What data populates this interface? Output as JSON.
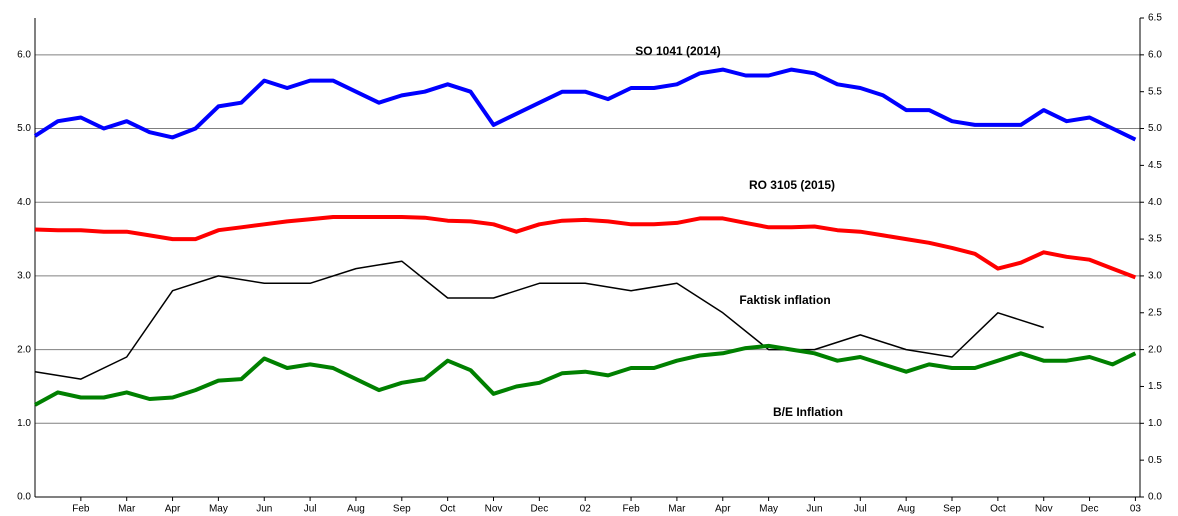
{
  "chart_data": {
    "type": "line",
    "annotations": [
      "SO 1041 (2014)",
      "RO 3105 (2015)",
      "Faktisk inflation",
      "B/E Inflation"
    ],
    "x": [
      0,
      0.5,
      1,
      1.5,
      2,
      2.5,
      3,
      3.5,
      4,
      4.5,
      5,
      5.5,
      6,
      6.5,
      7,
      7.5,
      8,
      8.5,
      9,
      9.5,
      10,
      10.5,
      11,
      11.5,
      12,
      12.5,
      13,
      13.5,
      14,
      14.5,
      15,
      15.5,
      16,
      16.5,
      17,
      17.5,
      18,
      18.5,
      19,
      19.5,
      20,
      20.5,
      21,
      21.5,
      22,
      22.5,
      23,
      23.5,
      24
    ],
    "xlim": [
      0,
      24.1
    ],
    "xticks": [
      {
        "value": 1,
        "label": "Feb"
      },
      {
        "value": 2,
        "label": "Mar"
      },
      {
        "value": 3,
        "label": "Apr"
      },
      {
        "value": 4,
        "label": "May"
      },
      {
        "value": 5,
        "label": "Jun"
      },
      {
        "value": 6,
        "label": "Jul"
      },
      {
        "value": 7,
        "label": "Aug"
      },
      {
        "value": 8,
        "label": "Sep"
      },
      {
        "value": 9,
        "label": "Oct"
      },
      {
        "value": 10,
        "label": "Nov"
      },
      {
        "value": 11,
        "label": "Dec"
      },
      {
        "value": 12,
        "label": "02"
      },
      {
        "value": 13,
        "label": "Feb"
      },
      {
        "value": 14,
        "label": "Mar"
      },
      {
        "value": 15,
        "label": "Apr"
      },
      {
        "value": 16,
        "label": "May"
      },
      {
        "value": 17,
        "label": "Jun"
      },
      {
        "value": 18,
        "label": "Jul"
      },
      {
        "value": 19,
        "label": "Aug"
      },
      {
        "value": 20,
        "label": "Sep"
      },
      {
        "value": 21,
        "label": "Oct"
      },
      {
        "value": 22,
        "label": "Nov"
      },
      {
        "value": 23,
        "label": "Dec"
      },
      {
        "value": 24,
        "label": "03"
      }
    ],
    "ylim": [
      0,
      6.5
    ],
    "yticks": [
      {
        "value": 0,
        "label": "0.0"
      },
      {
        "value": 1,
        "label": "1.0"
      },
      {
        "value": 2,
        "label": "2.0"
      },
      {
        "value": 3,
        "label": "3.0"
      },
      {
        "value": 4,
        "label": "4.0"
      },
      {
        "value": 5,
        "label": "5.0"
      },
      {
        "value": 6,
        "label": "6.0"
      }
    ],
    "y2lim": [
      0,
      6.5
    ],
    "y2ticks": [
      {
        "value": 0,
        "label": "0.0"
      },
      {
        "value": 0.5,
        "label": "0.5"
      },
      {
        "value": 1,
        "label": "1.0"
      },
      {
        "value": 1.5,
        "label": "1.5"
      },
      {
        "value": 2,
        "label": "2.0"
      },
      {
        "value": 2.5,
        "label": "2.5"
      },
      {
        "value": 3,
        "label": "3.0"
      },
      {
        "value": 3.5,
        "label": "3.5"
      },
      {
        "value": 4,
        "label": "4.0"
      },
      {
        "value": 4.5,
        "label": "4.5"
      },
      {
        "value": 5,
        "label": "5.0"
      },
      {
        "value": 5.5,
        "label": "5.5"
      },
      {
        "value": 6,
        "label": "6.0"
      },
      {
        "value": 6.5,
        "label": "6.5"
      }
    ],
    "grid": true,
    "series": [
      {
        "color": "#0000ff",
        "width": 4,
        "values": [
          4.9,
          5.1,
          5.15,
          5.0,
          5.1,
          4.95,
          4.88,
          5.0,
          5.3,
          5.35,
          5.65,
          5.55,
          5.65,
          5.65,
          5.5,
          5.35,
          5.45,
          5.5,
          5.6,
          5.5,
          5.05,
          5.2,
          5.35,
          5.5,
          5.5,
          5.4,
          5.55,
          5.55,
          5.6,
          5.75,
          5.8,
          5.72,
          5.72,
          5.8,
          5.75,
          5.6,
          5.55,
          5.45,
          5.25,
          5.25,
          5.1,
          5.05,
          5.05,
          5.05,
          5.25,
          5.1,
          5.15,
          5.0,
          4.85
        ]
      },
      {
        "color": "#ff0000",
        "width": 4,
        "values": [
          3.63,
          3.62,
          3.62,
          3.6,
          3.6,
          3.55,
          3.5,
          3.5,
          3.62,
          3.66,
          3.7,
          3.74,
          3.77,
          3.8,
          3.8,
          3.8,
          3.8,
          3.79,
          3.75,
          3.74,
          3.7,
          3.6,
          3.7,
          3.75,
          3.76,
          3.74,
          3.7,
          3.7,
          3.72,
          3.78,
          3.78,
          3.72,
          3.66,
          3.66,
          3.67,
          3.62,
          3.6,
          3.55,
          3.5,
          3.45,
          3.38,
          3.3,
          3.1,
          3.18,
          3.32,
          3.26,
          3.22,
          3.1,
          2.98
        ]
      },
      {
        "color": "#000000",
        "width": 1.5,
        "x": [
          0,
          1,
          2,
          3,
          4,
          5,
          6,
          7,
          8,
          9,
          10,
          11,
          12,
          13,
          14,
          15,
          16,
          17,
          18,
          19,
          20,
          21,
          22
        ],
        "values": [
          1.7,
          1.6,
          1.9,
          2.8,
          3.0,
          2.9,
          2.9,
          3.1,
          3.2,
          2.7,
          2.7,
          2.9,
          2.9,
          2.8,
          2.9,
          2.5,
          2.0,
          2.0,
          2.2,
          2.0,
          1.9,
          2.5,
          2.3
        ]
      },
      {
        "color": "#008000",
        "width": 4,
        "values": [
          1.25,
          1.42,
          1.35,
          1.35,
          1.42,
          1.33,
          1.35,
          1.45,
          1.58,
          1.6,
          1.88,
          1.75,
          1.8,
          1.75,
          1.6,
          1.45,
          1.55,
          1.6,
          1.85,
          1.72,
          1.4,
          1.5,
          1.55,
          1.68,
          1.7,
          1.65,
          1.75,
          1.75,
          1.85,
          1.92,
          1.95,
          2.02,
          2.05,
          2.0,
          1.95,
          1.85,
          1.9,
          1.8,
          1.7,
          1.8,
          1.75,
          1.75,
          1.85,
          1.95,
          1.85,
          1.85,
          1.9,
          1.8,
          1.95
        ]
      }
    ]
  }
}
